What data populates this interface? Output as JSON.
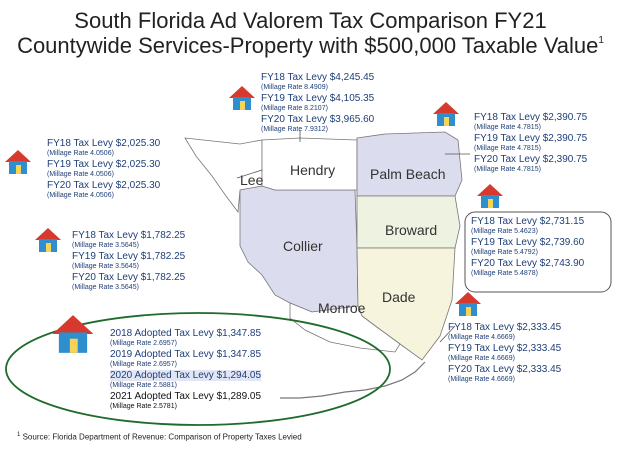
{
  "title_line1": "South Florida Ad Valorem Tax Comparison FY21",
  "title_line2": "Countywide Services-Property with $500,000 Taxable Value",
  "title_sup": "1",
  "counties": {
    "lee": "Lee",
    "hendry": "Hendry",
    "palm_beach": "Palm Beach",
    "collier": "Collier",
    "broward": "Broward",
    "monroe": "Monroe",
    "dade": "Dade"
  },
  "hendry": [
    {
      "levy": "FY18 Tax Levy $4,245.45",
      "rate": "(Millage Rate 8.4909)"
    },
    {
      "levy": "FY19 Tax Levy $4,105.35",
      "rate": "(Millage Rate 8.2107)"
    },
    {
      "levy": "FY20 Tax Levy $3,965.60",
      "rate": "(Millage Rate 7.9312)"
    }
  ],
  "palm_beach": [
    {
      "levy": "FY18 Tax Levy $2,390.75",
      "rate": "(Millage Rate 4.7815)"
    },
    {
      "levy": "FY19 Tax Levy $2,390.75",
      "rate": "(Millage Rate 4.7815)"
    },
    {
      "levy": "FY20 Tax Levy $2,390.75",
      "rate": "(Millage Rate 4.7815)"
    }
  ],
  "lee": [
    {
      "levy": "FY18 Tax Levy $2,025.30",
      "rate": "(Millage Rate 4.0506)"
    },
    {
      "levy": "FY19 Tax Levy $2,025.30",
      "rate": "(Millage Rate 4.0506)"
    },
    {
      "levy": "FY20 Tax Levy $2,025.30",
      "rate": "(Millage Rate 4.0506)"
    }
  ],
  "broward": [
    {
      "levy": "FY18 Tax Levy $2,731.15",
      "rate": "(Millage Rate 5.4623)"
    },
    {
      "levy": "FY19 Tax Levy $2,739.60",
      "rate": "(Millage Rate 5.4792)"
    },
    {
      "levy": "FY20 Tax Levy $2,743.90",
      "rate": "(Millage Rate 5.4878)"
    }
  ],
  "collier": [
    {
      "levy": "FY18 Tax Levy $1,782.25",
      "rate": "(Millage Rate 3.5645)"
    },
    {
      "levy": "FY19 Tax Levy $1,782.25",
      "rate": "(Millage Rate 3.5645)"
    },
    {
      "levy": "FY20 Tax Levy $1,782.25",
      "rate": "(Millage Rate 3.5645)"
    }
  ],
  "dade": [
    {
      "levy": "FY18 Tax Levy $2,333.45",
      "rate": "(Millage Rate 4.6669)"
    },
    {
      "levy": "FY19 Tax Levy $2,333.45",
      "rate": "(Millage Rate 4.6669)"
    },
    {
      "levy": "FY20 Tax Levy $2,333.45",
      "rate": "(Millage Rate 4.6669)"
    }
  ],
  "monroe": [
    {
      "levy": "2018 Adopted Tax Levy $1,347.85",
      "rate": "(Millage Rate 2.6957)"
    },
    {
      "levy": "2019 Adopted Tax Levy $1,347.85",
      "rate": "(Millage Rate 2.6957)"
    },
    {
      "levy": "2020 Adopted Tax Levy $1,294.05",
      "rate": "(Millage Rate 2.5881)"
    },
    {
      "levy": "2021 Adopted Tax Levy $1,289.05",
      "rate": "(Millage Rate 2.5781)"
    }
  ],
  "footnote_sup": "1",
  "footnote": "Source: Florida Department of Revenue:  Comparison of Property Taxes Levied",
  "colors": {
    "levy_text": "#1f3f78",
    "map_collier": "#dcdcef",
    "map_palm_beach": "#dcdcef",
    "map_broward": "#eef3e1",
    "map_dade": "#f6f4dd",
    "monroe_ellipse": "#1e6b2c",
    "house_wall": "#2f8fce",
    "house_roof": "#d63a2f"
  }
}
